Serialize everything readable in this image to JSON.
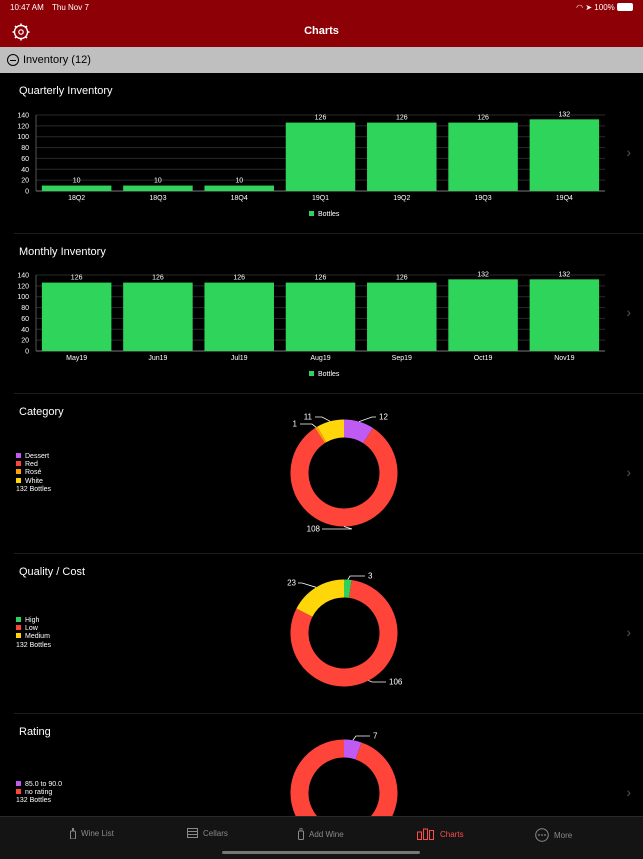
{
  "status": {
    "time": "10:47 AM",
    "date": "Thu Nov 7",
    "battery": "100%"
  },
  "nav": {
    "title": "Charts"
  },
  "section": {
    "label": "Inventory (12)"
  },
  "cards": {
    "quarterly": {
      "title": "Quarterly Inventory",
      "legend": "Bottles"
    },
    "monthly": {
      "title": "Monthly Inventory",
      "legend": "Bottles"
    },
    "category": {
      "title": "Category",
      "legend": [
        {
          "label": "Dessert",
          "color": "#bf5af2"
        },
        {
          "label": "Red",
          "color": "#ff453a"
        },
        {
          "label": "Rosé",
          "color": "#ff9f0a"
        },
        {
          "label": "White",
          "color": "#ffd60a"
        }
      ],
      "total": "132 Bottles"
    },
    "quality": {
      "title": "Quality / Cost",
      "legend": [
        {
          "label": "High",
          "color": "#30d158"
        },
        {
          "label": "Low",
          "color": "#ff453a"
        },
        {
          "label": "Medium",
          "color": "#ffd60a"
        }
      ],
      "total": "132 Bottles"
    },
    "rating": {
      "title": "Rating",
      "legend": [
        {
          "label": "85.0 to 90.0",
          "color": "#bf5af2"
        },
        {
          "label": "no rating",
          "color": "#ff453a"
        }
      ],
      "total": "132 Bottles"
    }
  },
  "tabs": [
    {
      "label": "Wine List",
      "icon": "wine-bottle-icon"
    },
    {
      "label": "Cellars",
      "icon": "cellar-icon"
    },
    {
      "label": "Add Wine",
      "icon": "add-wine-icon"
    },
    {
      "label": "Charts",
      "icon": "charts-icon",
      "active": true
    },
    {
      "label": "More",
      "icon": "more-icon"
    }
  ],
  "colors": {
    "nav": "#8d0006",
    "bar": "#2fd55a",
    "active_tab": "#ff4b4b"
  },
  "chart_data": [
    {
      "type": "bar",
      "title": "Quarterly Inventory",
      "categories": [
        "18Q2",
        "18Q3",
        "18Q4",
        "19Q1",
        "19Q2",
        "19Q3",
        "19Q4"
      ],
      "series": [
        {
          "name": "Bottles",
          "values": [
            10,
            10,
            10,
            126,
            126,
            126,
            132
          ]
        }
      ],
      "ylim": [
        0,
        140
      ],
      "yticks": [
        0,
        20,
        40,
        60,
        80,
        100,
        120,
        140
      ],
      "grid": true,
      "legend": "bottom"
    },
    {
      "type": "bar",
      "title": "Monthly Inventory",
      "categories": [
        "May19",
        "Jun19",
        "Jul19",
        "Aug19",
        "Sep19",
        "Oct19",
        "Nov19"
      ],
      "series": [
        {
          "name": "Bottles",
          "values": [
            126,
            126,
            126,
            126,
            126,
            132,
            132
          ]
        }
      ],
      "ylim": [
        0,
        140
      ],
      "yticks": [
        0,
        20,
        40,
        60,
        80,
        100,
        120,
        140
      ],
      "grid": true,
      "legend": "bottom"
    },
    {
      "type": "pie",
      "title": "Category",
      "labels": [
        "Dessert",
        "Red",
        "Rosé",
        "White"
      ],
      "values": [
        12,
        108,
        1,
        11
      ],
      "colors": [
        "#bf5af2",
        "#ff453a",
        "#ff9f0a",
        "#ffd60a"
      ]
    },
    {
      "type": "pie",
      "title": "Quality / Cost",
      "labels": [
        "High",
        "Low",
        "Medium"
      ],
      "values": [
        3,
        106,
        23
      ],
      "colors": [
        "#30d158",
        "#ff453a",
        "#ffd60a"
      ]
    },
    {
      "type": "pie",
      "title": "Rating",
      "labels": [
        "85.0 to 90.0",
        "no rating"
      ],
      "values": [
        7,
        125
      ],
      "colors": [
        "#bf5af2",
        "#ff453a"
      ]
    }
  ]
}
